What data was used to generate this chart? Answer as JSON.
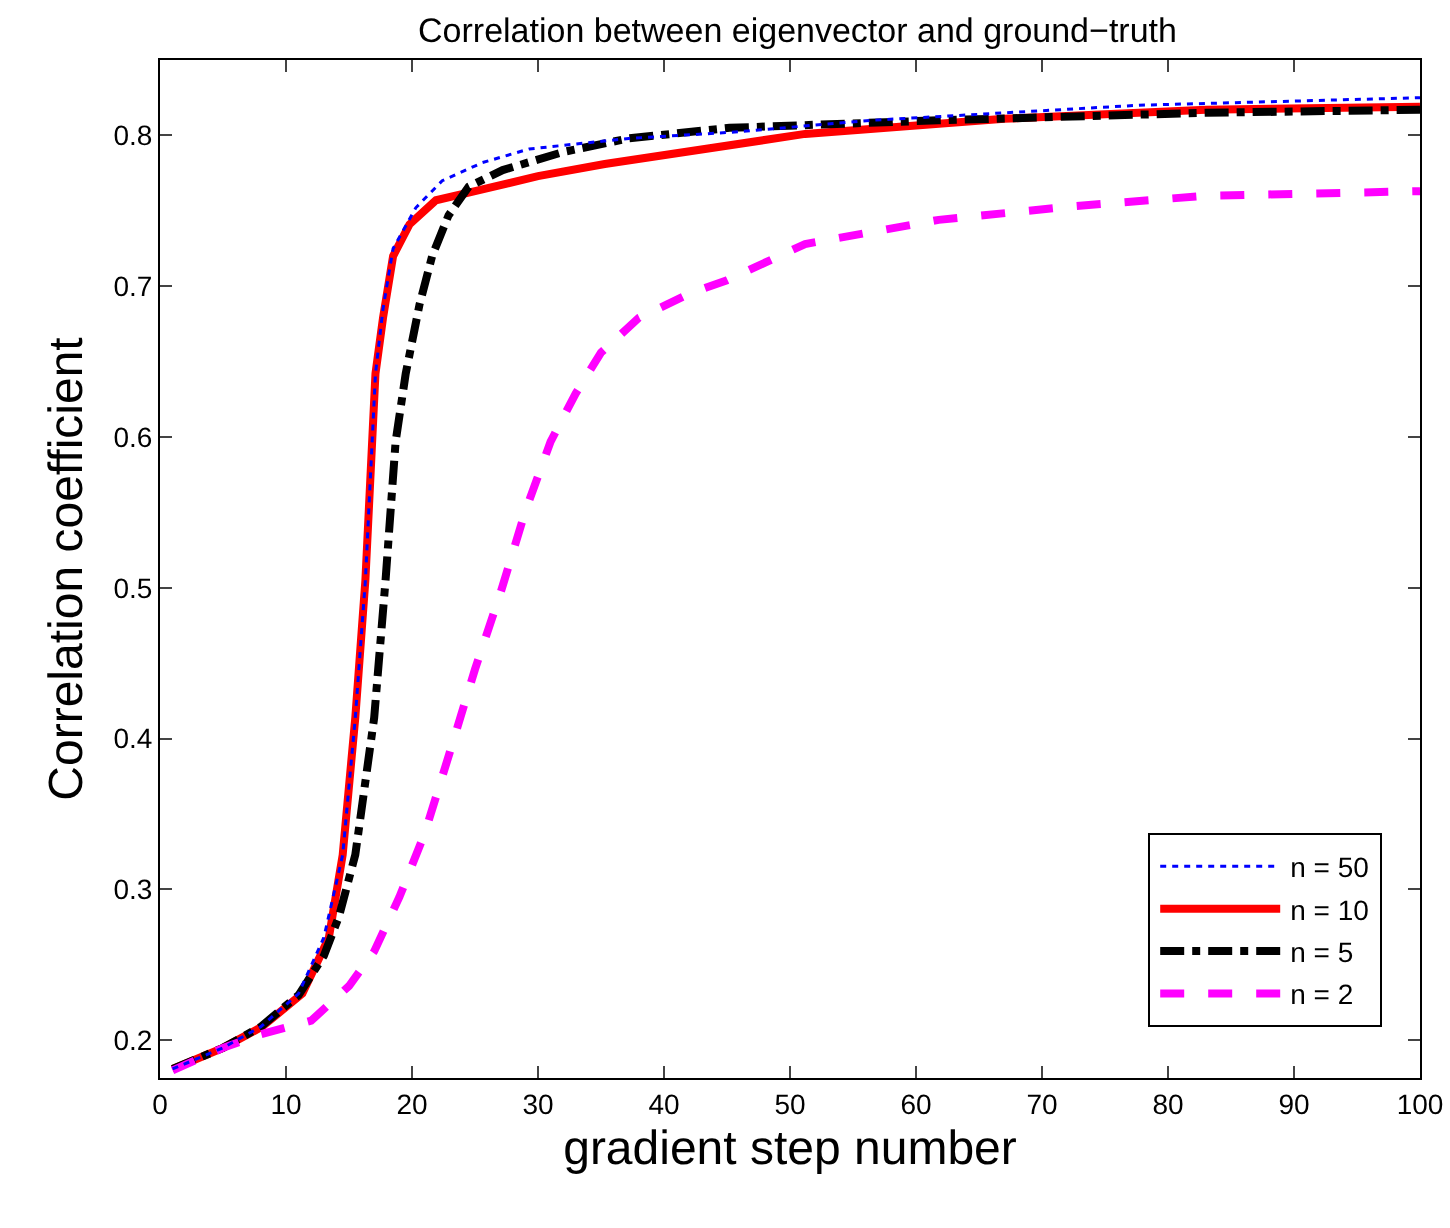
{
  "chart_data": {
    "type": "line",
    "title": "Correlation between eigenvector and ground−truth",
    "xlabel": "gradient step number",
    "ylabel": "Correlation coefficient",
    "xlim": [
      0,
      100
    ],
    "xticks": [
      0,
      10,
      20,
      30,
      40,
      50,
      60,
      70,
      80,
      90,
      100
    ],
    "ylim": [
      0.175,
      0.85
    ],
    "yticks": [
      0.2,
      0.3,
      0.4,
      0.5,
      0.6,
      0.7,
      0.8
    ],
    "grid": false,
    "legend": "bottom right",
    "marker": "none",
    "series": [
      {
        "name": "n = 50",
        "color": "#0000ff",
        "line_style": "dotted",
        "x": [
          1,
          5,
          8,
          11,
          13,
          14.5,
          15.5,
          16.3,
          17.1,
          17.7,
          18.5,
          20.3,
          22.4,
          25.6,
          29.3,
          37.2,
          45.2,
          56.5,
          77.7,
          100
        ],
        "values": [
          0.181,
          0.195,
          0.209,
          0.231,
          0.268,
          0.323,
          0.414,
          0.505,
          0.642,
          0.685,
          0.725,
          0.752,
          0.77,
          0.782,
          0.791,
          0.798,
          0.802,
          0.81,
          0.82,
          0.825
        ]
      },
      {
        "name": "n = 10",
        "color": "#ff0000",
        "line_style": "solid",
        "x": [
          1,
          5,
          8.1,
          11.3,
          13.4,
          14.5,
          15.5,
          16.3,
          17.1,
          17.7,
          18.5,
          19.8,
          21.9,
          25,
          30,
          35.3,
          51.2,
          67,
          83,
          100
        ],
        "values": [
          0.181,
          0.195,
          0.209,
          0.231,
          0.268,
          0.323,
          0.414,
          0.505,
          0.642,
          0.679,
          0.72,
          0.741,
          0.757,
          0.763,
          0.773,
          0.781,
          0.801,
          0.811,
          0.817,
          0.819
        ]
      },
      {
        "name": "n = 5",
        "color": "#000000",
        "line_style": "dashdot",
        "x": [
          1,
          5,
          8,
          11,
          13,
          14.2,
          15.5,
          17,
          17.9,
          18.7,
          19.5,
          20.6,
          21.6,
          22.9,
          24.5,
          27.2,
          32,
          37.2,
          45.2,
          61.8,
          83,
          100
        ],
        "values": [
          0.181,
          0.195,
          0.209,
          0.23,
          0.256,
          0.282,
          0.323,
          0.414,
          0.505,
          0.597,
          0.642,
          0.688,
          0.72,
          0.747,
          0.766,
          0.777,
          0.789,
          0.798,
          0.805,
          0.81,
          0.815,
          0.817
        ]
      },
      {
        "name": "n = 2",
        "color": "#ff00ff",
        "line_style": "dashed",
        "x": [
          1,
          5,
          8,
          12,
          15,
          17,
          19,
          21,
          23,
          25,
          27,
          29,
          31,
          33,
          35,
          38,
          42,
          45,
          51.2,
          61.8,
          72.4,
          83,
          100
        ],
        "values": [
          0.18,
          0.195,
          0.204,
          0.213,
          0.236,
          0.259,
          0.295,
          0.337,
          0.391,
          0.446,
          0.496,
          0.551,
          0.597,
          0.629,
          0.656,
          0.679,
          0.695,
          0.704,
          0.728,
          0.744,
          0.753,
          0.76,
          0.763
        ]
      }
    ]
  }
}
